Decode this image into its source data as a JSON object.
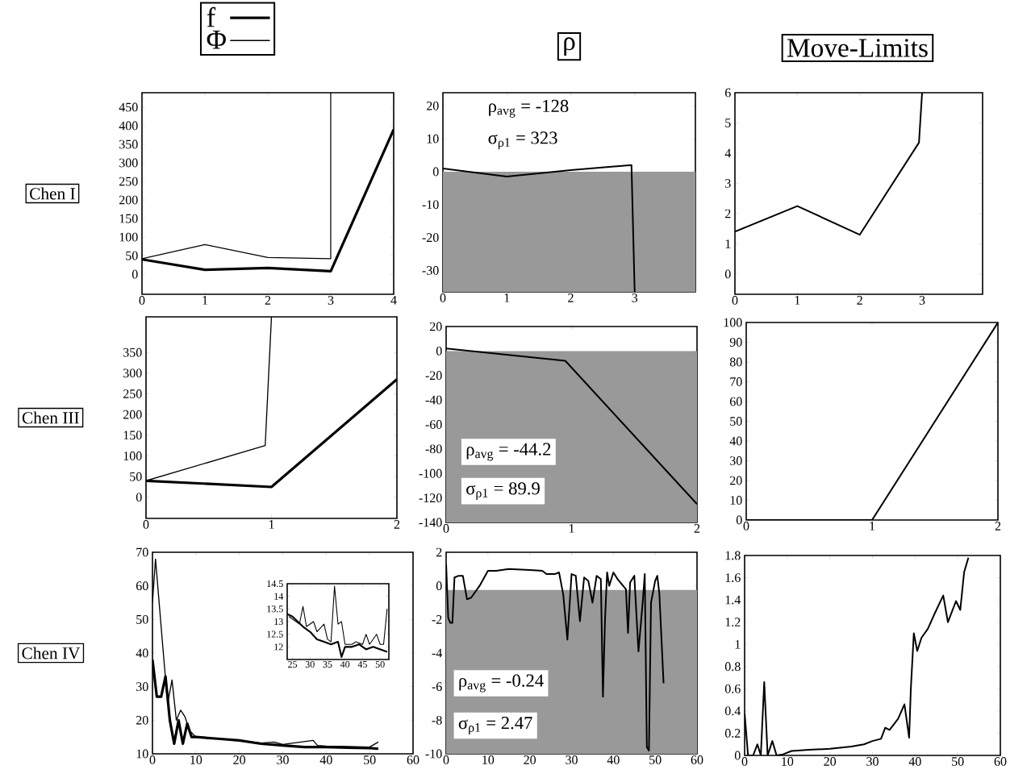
{
  "chart_data": [
    {
      "type": "line",
      "ylabel": "Chen I",
      "legend": "top",
      "xlim": [
        0,
        4
      ],
      "ylim": [
        -54,
        489
      ],
      "xticks": [
        0,
        1,
        2,
        3,
        4
      ],
      "yticks": [
        0,
        50,
        100,
        150,
        200,
        250,
        300,
        350,
        400,
        450
      ],
      "series": [
        {
          "name": "f",
          "color": "#000000",
          "x": [
            0,
            1,
            2,
            3,
            4
          ],
          "values": [
            40,
            12,
            17,
            8,
            390
          ]
        },
        {
          "name": "Φ",
          "color": "#000000",
          "x": [
            0,
            1,
            2,
            3,
            3
          ],
          "values": [
            42,
            80,
            45,
            42,
            489
          ]
        }
      ]
    },
    {
      "type": "line",
      "title": "ρ",
      "xlim": [
        0,
        3.95
      ],
      "ylim": [
        -36.5,
        24
      ],
      "xticks": [
        0,
        1,
        2,
        3
      ],
      "yticks": [
        -30,
        -20,
        -10,
        0,
        10,
        20
      ],
      "annotations": [
        "ρ$_{avg}$ = -128",
        "σ$_{ρ1}$ = 323"
      ],
      "bands": [
        {
          "axis": "y",
          "from": -36.5,
          "to": 0,
          "color": "#999999"
        }
      ],
      "series": [
        {
          "color": "#000000",
          "x": [
            0,
            1,
            2,
            2.95,
            3
          ],
          "values": [
            1,
            -1.5,
            0.5,
            2,
            -36.5
          ]
        }
      ]
    },
    {
      "type": "line",
      "title": "Move-Limits",
      "xlim": [
        0,
        3.97
      ],
      "ylim": [
        -0.67,
        6
      ],
      "xticks": [
        0,
        1,
        2,
        3
      ],
      "yticks": [
        0,
        1,
        2,
        3,
        4,
        5,
        6
      ],
      "series": [
        {
          "color": "#000000",
          "x": [
            0,
            1,
            2,
            2.95,
            3
          ],
          "values": [
            1.4,
            2.25,
            1.3,
            4.35,
            6
          ]
        }
      ]
    },
    {
      "type": "line",
      "ylabel": "Chen III",
      "xlim": [
        0,
        2
      ],
      "ylim": [
        -51,
        436
      ],
      "xticks": [
        0,
        1,
        2
      ],
      "yticks": [
        0,
        50,
        100,
        150,
        200,
        250,
        300,
        350
      ],
      "series": [
        {
          "color": "#000000",
          "x": [
            0,
            1,
            2
          ],
          "values": [
            40,
            25,
            285
          ]
        },
        {
          "color": "#000000",
          "x": [
            0,
            0.95,
            1
          ],
          "values": [
            40,
            125,
            436
          ]
        }
      ]
    },
    {
      "type": "line",
      "xlim": [
        0,
        2
      ],
      "ylim": [
        -140,
        20
      ],
      "xticks": [
        0,
        1,
        2
      ],
      "yticks": [
        -140,
        -120,
        -100,
        -80,
        -60,
        -40,
        -20,
        0,
        20
      ],
      "annotations": [
        "ρ$_{avg}$ = -44.2",
        "σ$_{ρ1}$ = 89.9"
      ],
      "bands": [
        {
          "axis": "y",
          "from": -140,
          "to": 0,
          "color": "#999999"
        }
      ],
      "series": [
        {
          "color": "#000000",
          "x": [
            0,
            0.95,
            2
          ],
          "values": [
            2,
            -8,
            -125
          ]
        }
      ]
    },
    {
      "type": "line",
      "xlim": [
        0,
        2
      ],
      "ylim": [
        0,
        100
      ],
      "xticks": [
        0,
        1,
        2
      ],
      "yticks": [
        0,
        10,
        20,
        30,
        40,
        50,
        60,
        70,
        80,
        90,
        100
      ],
      "series": [
        {
          "color": "#000000",
          "x": [
            0,
            1,
            2
          ],
          "values": [
            0,
            0,
            100
          ]
        }
      ]
    },
    {
      "type": "line",
      "ylabel": "Chen IV",
      "xlim": [
        0,
        60
      ],
      "ylim": [
        10,
        70
      ],
      "xticks": [
        0,
        10,
        20,
        30,
        40,
        50,
        60
      ],
      "yticks": [
        10,
        20,
        30,
        40,
        50,
        60,
        70
      ],
      "series": [
        {
          "color": "#000000",
          "x": [
            0,
            1,
            2,
            3,
            4,
            5,
            6,
            7,
            8,
            9,
            10,
            15,
            20,
            25,
            30,
            35,
            40,
            45,
            50,
            52
          ],
          "values": [
            38,
            27,
            27,
            33,
            20,
            13,
            20,
            13,
            19,
            15,
            15,
            14.5,
            14,
            13,
            12.5,
            12,
            12,
            11.8,
            11.7,
            11.5
          ]
        },
        {
          "color": "#000000",
          "x": [
            0,
            0.7,
            2.5,
            3.5,
            4.5,
            5.5,
            6.5,
            7.5,
            8.5,
            10,
            15,
            20,
            25,
            28,
            30,
            37,
            38,
            40,
            45,
            50,
            52
          ],
          "values": [
            55,
            68,
            40,
            25,
            32,
            20,
            23,
            21,
            17,
            15,
            14.5,
            14,
            13.2,
            13.5,
            12.8,
            14,
            12.5,
            12.3,
            12.2,
            12,
            13.5
          ]
        }
      ]
    },
    {
      "type": "line",
      "xlim": [
        0,
        60
      ],
      "ylim": [
        -10,
        2
      ],
      "xticks": [
        0,
        10,
        20,
        30,
        40,
        50,
        60
      ],
      "yticks": [
        -10,
        -8,
        -6,
        -4,
        -2,
        0,
        2
      ],
      "annotations": [
        "ρ$_{avg}$ = -0.24",
        "σ$_{ρ1}$ = 2.47"
      ],
      "bands": [
        {
          "axis": "y",
          "from": -10,
          "to": -0.24,
          "color": "#999999"
        }
      ],
      "series": [
        {
          "color": "#000000",
          "x": [
            0,
            0.5,
            1,
            1.5,
            2,
            3,
            4,
            5,
            6,
            8,
            10,
            12,
            15,
            20,
            23,
            24,
            26,
            27,
            28,
            29,
            30,
            31,
            32,
            33,
            34,
            35,
            36,
            37,
            37.5,
            38,
            38.5,
            39,
            40,
            41,
            43,
            43.5,
            44,
            45,
            46,
            47,
            47.5,
            48,
            48.5,
            49,
            50,
            50.5,
            51,
            52
          ],
          "values": [
            1.3,
            -1.9,
            -2.2,
            -2.2,
            0.5,
            0.6,
            0.6,
            -0.8,
            -0.7,
            0,
            0.9,
            0.9,
            1,
            0.95,
            0.9,
            0.7,
            0.7,
            0.8,
            -0.5,
            -3.2,
            0.7,
            0.6,
            -2.1,
            0.5,
            0.3,
            -1,
            0.6,
            0.4,
            -6.6,
            -2,
            0.8,
            0,
            0.8,
            0.4,
            -0.2,
            -2.8,
            0.2,
            0.6,
            -3.9,
            -1,
            0.7,
            -9.6,
            -9.8,
            -1,
            0.3,
            0.6,
            -0.5,
            -5.8
          ]
        }
      ]
    },
    {
      "type": "line",
      "xlim": [
        0,
        60
      ],
      "ylim": [
        0,
        1.8
      ],
      "xticks": [
        0,
        10,
        20,
        30,
        40,
        50,
        60
      ],
      "yticks": [
        0,
        0.2,
        0.4,
        0.6,
        0.8,
        1,
        1.2,
        1.4,
        1.6,
        1.8
      ],
      "series": [
        {
          "color": "#000000",
          "x": [
            0,
            0.8,
            2,
            3,
            3.8,
            4.6,
            5.4,
            6.5,
            7.5,
            9,
            11,
            15,
            20,
            25,
            28,
            30,
            32,
            33,
            34,
            36,
            37.5,
            38.6,
            39,
            39.7,
            40.5,
            41.5,
            43,
            44.5,
            46.6,
            47.7,
            49.6,
            50.6,
            51.5,
            52.5
          ],
          "values": [
            0.38,
            0,
            0,
            0.1,
            0,
            0.66,
            0,
            0.13,
            0,
            0.01,
            0.04,
            0.05,
            0.06,
            0.08,
            0.1,
            0.13,
            0.15,
            0.25,
            0.23,
            0.33,
            0.46,
            0.16,
            0.6,
            1.1,
            0.94,
            1.06,
            1.14,
            1.27,
            1.44,
            1.2,
            1.39,
            1.31,
            1.65,
            1.78
          ]
        }
      ]
    },
    {
      "type": "line",
      "xlim": [
        23.5,
        52.5
      ],
      "ylim": [
        11.5,
        14.5
      ],
      "xticks": [
        25,
        30,
        35,
        40,
        45,
        50
      ],
      "yticks": [
        12,
        12.5,
        13,
        13.5,
        14,
        14.5
      ],
      "series": [
        {
          "color": "#000000",
          "x": [
            23.5,
            25,
            28,
            30,
            32,
            34,
            36,
            38,
            39,
            40,
            42,
            44,
            46,
            48,
            50,
            52
          ],
          "values": [
            13.3,
            13.2,
            12.8,
            12.6,
            12.3,
            12.2,
            12.1,
            12.2,
            11.6,
            12,
            12,
            12.1,
            11.9,
            12,
            11.9,
            11.8
          ]
        },
        {
          "color": "#000000",
          "x": [
            24,
            27,
            28,
            29,
            31,
            32,
            34,
            35,
            36,
            37,
            38,
            39,
            40,
            42,
            43,
            45,
            46,
            47,
            49,
            50,
            51,
            52
          ],
          "values": [
            13.2,
            12.9,
            13.6,
            12.8,
            13,
            12.6,
            12.9,
            12.3,
            12.2,
            14.4,
            12.9,
            13,
            12.1,
            12.1,
            12.2,
            12.1,
            12.5,
            12.1,
            12.5,
            12.1,
            12.1,
            13.5
          ]
        }
      ]
    }
  ]
}
